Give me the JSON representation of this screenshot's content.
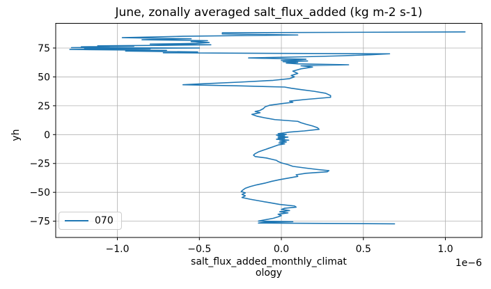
{
  "title": "June, zonally averaged salt_flux_added (kg m-2 s-1)",
  "axes": {
    "ylabel": "yh",
    "xlabel_line1": "salt_flux_added_monthly_climat",
    "xlabel_line2": "ology",
    "offset_label": "1e−6",
    "x_tick_labels": [
      "−1.0",
      "−0.5",
      "0.0",
      "0.5",
      "1.0"
    ],
    "x_tick_values": [
      -1.0,
      -0.5,
      0.0,
      0.5,
      1.0
    ],
    "y_tick_labels": [
      "75",
      "50",
      "25",
      "0",
      "−25",
      "−50",
      "−75"
    ],
    "y_tick_values": [
      75,
      50,
      25,
      0,
      -25,
      -50,
      -75
    ]
  },
  "legend": {
    "label": "070",
    "position": "lower left"
  },
  "colors": {
    "line": "#1f77b4",
    "grid": "#b0b0b0",
    "axis_border": "#000000",
    "text": "#000000",
    "legend_border": "#cccccc"
  },
  "chart_data": {
    "type": "line",
    "title": "June, zonally averaged salt_flux_added (kg m-2 s-1)",
    "xlabel": "salt_flux_added_monthly_climatology",
    "ylabel": "yh",
    "x_unit_scale": "1e-6",
    "xlim": [
      -1.376,
      1.223
    ],
    "ylim": [
      -89.1,
      96.4
    ],
    "grid": true,
    "legend_position": "lower left",
    "series": [
      {
        "name": "070",
        "color": "#1f77b4",
        "points_yh_vs_value": [
          [
            -77.3,
            0.69
          ],
          [
            -76.6,
            -0.14
          ],
          [
            -75.9,
            -0.1
          ],
          [
            -75.4,
            0.07
          ],
          [
            -74.9,
            -0.14
          ],
          [
            -73.8,
            -0.1
          ],
          [
            -72.5,
            -0.05
          ],
          [
            -71.2,
            -0.02
          ],
          [
            -70.2,
            0.0
          ],
          [
            -69.0,
            -0.02
          ],
          [
            -67.8,
            0.04
          ],
          [
            -66.8,
            -0.01
          ],
          [
            -65.8,
            0.05
          ],
          [
            -64.8,
            0.0
          ],
          [
            -63.8,
            0.02
          ],
          [
            -62.8,
            0.09
          ],
          [
            -61.8,
            0.08
          ],
          [
            -60.5,
            -0.01
          ],
          [
            -59.0,
            -0.07
          ],
          [
            -57.5,
            -0.13
          ],
          [
            -56.0,
            -0.19
          ],
          [
            -54.5,
            -0.24
          ],
          [
            -53.0,
            -0.22
          ],
          [
            -51.8,
            -0.24
          ],
          [
            -50.5,
            -0.22
          ],
          [
            -49.3,
            -0.245
          ],
          [
            -48.0,
            -0.235
          ],
          [
            -46.5,
            -0.22
          ],
          [
            -45.0,
            -0.19
          ],
          [
            -43.5,
            -0.15
          ],
          [
            -42.0,
            -0.1
          ],
          [
            -40.5,
            -0.06
          ],
          [
            -39.0,
            -0.01
          ],
          [
            -37.5,
            0.05
          ],
          [
            -36.2,
            0.1
          ],
          [
            -34.8,
            0.09
          ],
          [
            -33.5,
            0.15
          ],
          [
            -32.2,
            0.28
          ],
          [
            -31.2,
            0.29
          ],
          [
            -30.2,
            0.22
          ],
          [
            -29.0,
            0.15
          ],
          [
            -27.5,
            0.07
          ],
          [
            -26.0,
            0.04
          ],
          [
            -24.5,
            0.0
          ],
          [
            -23.3,
            -0.02
          ],
          [
            -22.3,
            -0.03
          ],
          [
            -21.3,
            -0.06
          ],
          [
            -20.3,
            -0.09
          ],
          [
            -19.0,
            -0.16
          ],
          [
            -17.8,
            -0.17
          ],
          [
            -16.5,
            -0.16
          ],
          [
            -15.0,
            -0.14
          ],
          [
            -13.5,
            -0.11
          ],
          [
            -12.0,
            -0.08
          ],
          [
            -10.5,
            -0.05
          ],
          [
            -9.0,
            -0.02
          ],
          [
            -8.0,
            0.02
          ],
          [
            -7.2,
            -0.015
          ],
          [
            -6.4,
            0.03
          ],
          [
            -5.6,
            -0.01
          ],
          [
            -4.8,
            0.045
          ],
          [
            -4.0,
            -0.03
          ],
          [
            -3.4,
            0.02
          ],
          [
            -2.8,
            -0.02
          ],
          [
            -2.2,
            0.04
          ],
          [
            -1.6,
            -0.02
          ],
          [
            -1.0,
            0.02
          ],
          [
            -0.4,
            -0.03
          ],
          [
            0.2,
            0.03
          ],
          [
            0.8,
            -0.02
          ],
          [
            1.4,
            0.01
          ],
          [
            2.2,
            0.05
          ],
          [
            3.2,
            0.14
          ],
          [
            4.6,
            0.23
          ],
          [
            6.0,
            0.22
          ],
          [
            7.5,
            0.19
          ],
          [
            9.0,
            0.15
          ],
          [
            10.3,
            0.12
          ],
          [
            11.5,
            0.1
          ],
          [
            13.0,
            -0.04
          ],
          [
            14.5,
            -0.1
          ],
          [
            16.0,
            -0.15
          ],
          [
            17.5,
            -0.18
          ],
          [
            19.0,
            -0.13
          ],
          [
            20.0,
            -0.16
          ],
          [
            21.0,
            -0.13
          ],
          [
            22.5,
            -0.11
          ],
          [
            24.0,
            -0.1
          ],
          [
            25.5,
            -0.07
          ],
          [
            27.0,
            0.01
          ],
          [
            28.0,
            0.07
          ],
          [
            29.0,
            0.05
          ],
          [
            30.5,
            0.15
          ],
          [
            32.3,
            0.3
          ],
          [
            33.8,
            0.3
          ],
          [
            35.8,
            0.27
          ],
          [
            37.5,
            0.2
          ],
          [
            39.0,
            0.12
          ],
          [
            40.2,
            0.06
          ],
          [
            41.2,
            0.02
          ],
          [
            42.2,
            -0.25
          ],
          [
            43.2,
            -0.6
          ],
          [
            44.0,
            -0.48
          ],
          [
            45.5,
            -0.25
          ],
          [
            47.0,
            -0.05
          ],
          [
            48.5,
            0.05
          ],
          [
            50.0,
            0.08
          ],
          [
            51.2,
            0.06
          ],
          [
            53.0,
            0.1
          ],
          [
            55.0,
            0.07
          ],
          [
            57.0,
            0.12
          ],
          [
            58.5,
            0.19
          ],
          [
            59.6,
            0.12
          ],
          [
            60.5,
            0.41
          ],
          [
            61.3,
            0.1
          ],
          [
            62.0,
            0.03
          ],
          [
            62.6,
            0.1
          ],
          [
            63.2,
            0.01
          ],
          [
            63.8,
            0.16
          ],
          [
            64.4,
            0.0
          ],
          [
            65.3,
            0.15
          ],
          [
            66.4,
            -0.2
          ],
          [
            67.3,
            0.1
          ],
          [
            68.2,
            0.35
          ],
          [
            69.2,
            0.55
          ],
          [
            70.0,
            0.66
          ],
          [
            70.5,
            -0.2
          ],
          [
            70.9,
            -0.72
          ],
          [
            71.6,
            -0.51
          ],
          [
            72.4,
            -0.95
          ],
          [
            73.0,
            -0.7
          ],
          [
            73.4,
            -1.05
          ],
          [
            73.8,
            -1.29
          ],
          [
            74.2,
            -0.8
          ],
          [
            74.6,
            -1.2
          ],
          [
            75.0,
            -0.5
          ],
          [
            75.3,
            -1.28
          ],
          [
            75.7,
            -1.05
          ],
          [
            76.1,
            -1.22
          ],
          [
            76.5,
            -0.9
          ],
          [
            76.9,
            -1.12
          ],
          [
            77.3,
            -0.75
          ],
          [
            77.8,
            -0.43
          ],
          [
            78.4,
            -0.8
          ],
          [
            79.0,
            -0.52
          ],
          [
            79.8,
            -0.44
          ],
          [
            80.6,
            -0.55
          ],
          [
            81.4,
            -0.45
          ],
          [
            82.2,
            -0.85
          ],
          [
            83.0,
            -0.55
          ],
          [
            84.0,
            -0.97
          ],
          [
            85.2,
            -0.6
          ],
          [
            86.3,
            0.1
          ],
          [
            87.2,
            -0.36
          ],
          [
            88.2,
            -0.36
          ],
          [
            89.0,
            1.12
          ]
        ]
      }
    ]
  }
}
